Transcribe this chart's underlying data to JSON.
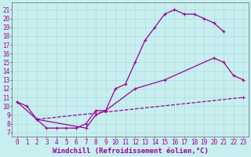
{
  "background_color": "#c8eef0",
  "grid_color": "#aadddd",
  "line_color": "#990099",
  "xlabel": "Windchill (Refroidissement éolien,°C)",
  "ylabel_ticks": [
    7,
    8,
    9,
    10,
    11,
    12,
    13,
    14,
    15,
    16,
    17,
    18,
    19,
    20,
    21
  ],
  "xlabel_ticks": [
    0,
    1,
    2,
    3,
    4,
    5,
    6,
    7,
    8,
    9,
    10,
    11,
    12,
    13,
    14,
    15,
    16,
    17,
    18,
    19,
    20,
    21,
    22,
    23
  ],
  "xlim": [
    -0.5,
    23.5
  ],
  "ylim": [
    6.5,
    21.8
  ],
  "line1_x": [
    0,
    1,
    2,
    3,
    4,
    5,
    6,
    7,
    8,
    9,
    10,
    11,
    12,
    13,
    14,
    15,
    16,
    17,
    18,
    19,
    20,
    21
  ],
  "line1_y": [
    10.5,
    10.0,
    8.5,
    7.5,
    7.5,
    7.5,
    7.5,
    8.0,
    9.5,
    9.5,
    12.0,
    12.5,
    15.0,
    17.5,
    19.0,
    20.5,
    21.0,
    20.5,
    20.5,
    20.0,
    19.5,
    18.5
  ],
  "line2_x": [
    0,
    2,
    7,
    8,
    9,
    12,
    15,
    20,
    21,
    22,
    23
  ],
  "line2_y": [
    10.5,
    8.5,
    7.5,
    9.0,
    9.5,
    12.0,
    13.0,
    15.5,
    15.0,
    13.5,
    13.0
  ],
  "line3_x": [
    2,
    23
  ],
  "line3_y": [
    8.5,
    11.0
  ],
  "font_size": 6.5,
  "tick_font_size": 5.5
}
